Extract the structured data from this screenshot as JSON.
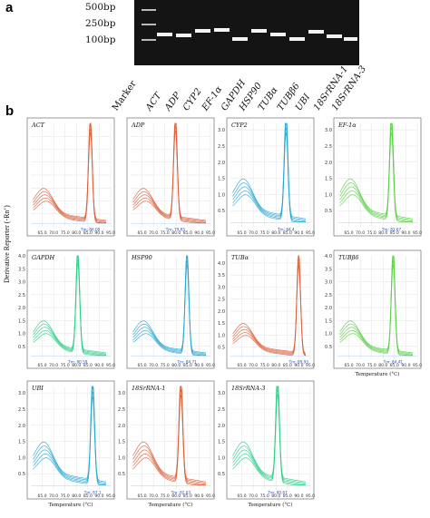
{
  "panel_a": {
    "letter": "a",
    "bp_labels": [
      "500bp",
      "250bp",
      "100bp"
    ],
    "lanes": [
      "Marker",
      "ACT",
      "ADP",
      "CYP2",
      "EF-1α",
      "GAPDH",
      "HSP90",
      "TUBα",
      "TUBβ6",
      "UBI",
      "18SrRNA-1",
      "18SrRNA-3"
    ]
  },
  "panel_b": {
    "letter": "b",
    "y_axis_label": "Derivative Reporter (-Rn’)",
    "x_axis_label": "Temperature (°C)"
  },
  "chart_data": [
    {
      "type": "line",
      "title": "ACT",
      "color": "#d9623b",
      "peak": 86.09,
      "tm_label": "Tm: 86.09",
      "ylim": [
        0,
        4
      ],
      "yticks": [],
      "xticks": [
        "65.0",
        "70.0",
        "75.0",
        "80.0",
        "85.0",
        "90.0",
        "95.0"
      ],
      "show_xlabel": false
    },
    {
      "type": "line",
      "title": "ADP",
      "color": "#d9623b",
      "peak": 79.65,
      "tm_label": "Tm: 79.65",
      "ylim": [
        0,
        4
      ],
      "yticks": [],
      "xticks": [
        "65.0",
        "70.0",
        "75.0",
        "80.0",
        "85.0",
        "90.0",
        "95.0"
      ],
      "show_xlabel": false
    },
    {
      "type": "line",
      "title": "CYP2",
      "color": "#2ba8d4",
      "peak": 84.4,
      "tm_label": "Tm: 84.4",
      "ylim": [
        0,
        3.2
      ],
      "yticks": [
        "0.5",
        "1.0",
        "1.5",
        "2.0",
        "2.5",
        "3.0"
      ],
      "xticks": [
        "65.0",
        "70.0",
        "75.0",
        "80.0",
        "85.0",
        "90.0",
        "95.0"
      ],
      "show_xlabel": false
    },
    {
      "type": "line",
      "title": "EF-1α",
      "color": "#5fcf49",
      "peak": 83.67,
      "tm_label": "Tm: 83.67",
      "ylim": [
        0,
        3.2
      ],
      "yticks": [
        "0.5",
        "1.0",
        "1.5",
        "2.0",
        "2.5",
        "3.0"
      ],
      "xticks": [
        "65.0",
        "70.0",
        "75.0",
        "80.0",
        "85.0",
        "90.0",
        "95.0"
      ],
      "show_xlabel": false
    },
    {
      "type": "line",
      "title": "GAPDH",
      "color": "#2fcf8a",
      "peak": 80.59,
      "tm_label": "Tm: 80.59",
      "ylim": [
        0,
        4
      ],
      "yticks": [
        "0.5",
        "1.0",
        "1.5",
        "2.0",
        "2.5",
        "3.0",
        "3.5",
        "4.0"
      ],
      "xticks": [
        "65.0",
        "70.0",
        "75.0",
        "80.0",
        "85.0",
        "90.0",
        "95.0"
      ],
      "show_xlabel": false
    },
    {
      "type": "line",
      "title": "HSP90",
      "color": "#2ba8d4",
      "peak": 84.71,
      "tm_label": "Tm: 84.71",
      "ylim": [
        0,
        4
      ],
      "yticks": [],
      "xticks": [
        "65.0",
        "70.0",
        "75.0",
        "80.0",
        "85.0",
        "90.0",
        "95.0"
      ],
      "show_xlabel": false
    },
    {
      "type": "line",
      "title": "TUBα",
      "color": "#d9623b",
      "peak": 89.93,
      "tm_label": "Tm: 89.93",
      "ylim": [
        0,
        4.3
      ],
      "yticks": [
        "0.5",
        "1.0",
        "1.5",
        "2.0",
        "2.5",
        "3.0",
        "3.5",
        "4.0"
      ],
      "xticks": [
        "65.0",
        "70.0",
        "75.0",
        "80.0",
        "85.0",
        "90.0",
        "95.0"
      ],
      "show_xlabel": false
    },
    {
      "type": "line",
      "title": "TUBβ6",
      "color": "#5fcf49",
      "peak": 84.41,
      "tm_label": "Tm: 84.41",
      "ylim": [
        0,
        4
      ],
      "yticks": [
        "0.5",
        "1.0",
        "1.5",
        "2.0",
        "2.5",
        "3.0",
        "3.5",
        "4.0"
      ],
      "xticks": [
        "65.0",
        "70.0",
        "75.0",
        "80.0",
        "85.0",
        "90.0",
        "95.0"
      ],
      "show_xlabel": true
    },
    {
      "type": "line",
      "title": "UBI",
      "color": "#2ba8d4",
      "peak": 87.1,
      "tm_label": "Tm: 87.1",
      "ylim": [
        0,
        3.2
      ],
      "yticks": [
        "0.5",
        "1.0",
        "1.5",
        "2.0",
        "2.5",
        "3.0"
      ],
      "xticks": [
        "65.0",
        "70.0",
        "75.0",
        "80.0",
        "85.0",
        "90.0",
        "95.0"
      ],
      "show_xlabel": true
    },
    {
      "type": "line",
      "title": "18SrRNA-1",
      "color": "#d9623b",
      "peak": 82.03,
      "tm_label": "Tm: 82.03",
      "ylim": [
        0,
        3.2
      ],
      "yticks": [
        "0.5",
        "1.0",
        "1.5",
        "2.0",
        "2.5",
        "3.0"
      ],
      "xticks": [
        "65.0",
        "70.0",
        "75.0",
        "80.0",
        "85.0",
        "90.0",
        "95.0"
      ],
      "show_xlabel": true
    },
    {
      "type": "line",
      "title": "18SrRNA-3",
      "color": "#2fcf8a",
      "peak": 80.67,
      "tm_label": "Tm: 80.67",
      "ylim": [
        0,
        3.2
      ],
      "yticks": [
        "0.5",
        "1.0",
        "1.5",
        "2.0",
        "2.5",
        "3.0"
      ],
      "xticks": [
        "65.0",
        "70.0",
        "75.0",
        "80.0",
        "85.0",
        "90.0",
        "95.0"
      ],
      "show_xlabel": true
    }
  ]
}
